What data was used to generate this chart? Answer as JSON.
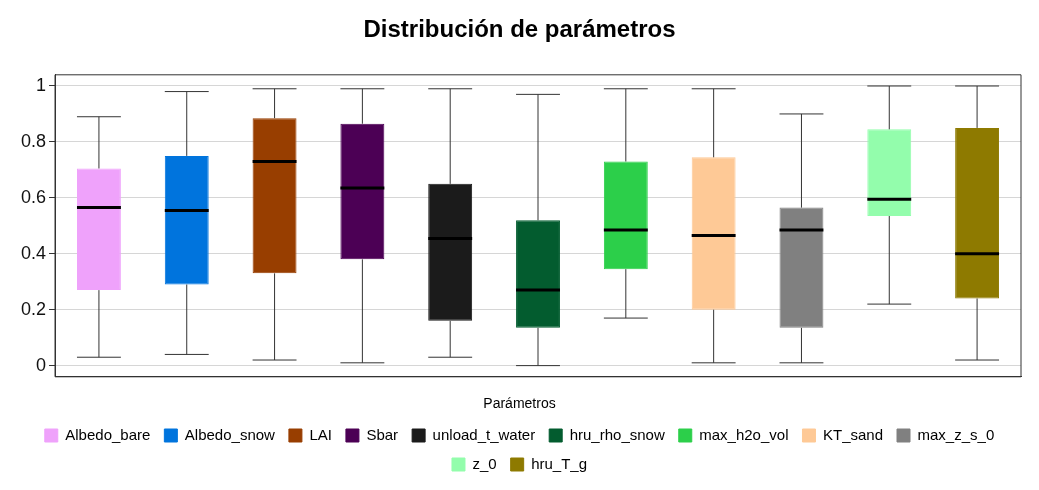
{
  "chart_data": {
    "type": "box",
    "title": "Distribución de parámetros",
    "legend_title": "Parámetros",
    "categories": [
      null,
      null,
      null,
      null,
      null,
      null,
      null,
      null,
      null,
      null,
      null
    ],
    "ylim": [
      -0.04,
      1.04
    ],
    "yticks": [
      0,
      0.2,
      0.4,
      0.6,
      0.8,
      1
    ],
    "grid": "y",
    "legend": "bottom",
    "series": [
      {
        "name": "Albedo_bare",
        "color": "#efa2fb",
        "boxes": [
          {
            "low": 0.03,
            "q1": 0.27,
            "median": 0.565,
            "q3": 0.705,
            "high": 0.89
          },
          null,
          null,
          null,
          null,
          null,
          null,
          null,
          null,
          null,
          null
        ]
      },
      {
        "name": "Albedo_snow",
        "color": "#0074dd",
        "boxes": [
          null,
          {
            "low": 0.04,
            "q1": 0.29,
            "median": 0.555,
            "q3": 0.75,
            "high": 0.98
          },
          null,
          null,
          null,
          null,
          null,
          null,
          null,
          null,
          null
        ]
      },
      {
        "name": "LAI",
        "color": "#983e00",
        "boxes": [
          null,
          null,
          {
            "low": 0.02,
            "q1": 0.33,
            "median": 0.73,
            "q3": 0.885,
            "high": 0.99
          },
          null,
          null,
          null,
          null,
          null,
          null,
          null,
          null
        ]
      },
      {
        "name": "Sbar",
        "color": "#4c0055",
        "boxes": [
          null,
          null,
          null,
          {
            "low": 0.01,
            "q1": 0.38,
            "median": 0.635,
            "q3": 0.865,
            "high": 0.99
          },
          null,
          null,
          null,
          null,
          null,
          null,
          null
        ]
      },
      {
        "name": "unload_t_water",
        "color": "#1b1b1b",
        "boxes": [
          null,
          null,
          null,
          null,
          {
            "low": 0.03,
            "q1": 0.16,
            "median": 0.455,
            "q3": 0.65,
            "high": 0.99
          },
          null,
          null,
          null,
          null,
          null,
          null
        ]
      },
      {
        "name": "hru_rho_snow",
        "color": "#035c2f",
        "boxes": [
          null,
          null,
          null,
          null,
          null,
          {
            "low": 0,
            "q1": 0.135,
            "median": 0.27,
            "q3": 0.52,
            "high": 0.97
          },
          null,
          null,
          null,
          null,
          null
        ]
      },
      {
        "name": "max_h2o_vol",
        "color": "#2ccf4a",
        "boxes": [
          null,
          null,
          null,
          null,
          null,
          null,
          {
            "low": 0.17,
            "q1": 0.345,
            "median": 0.485,
            "q3": 0.73,
            "high": 0.99
          },
          null,
          null,
          null,
          null
        ]
      },
      {
        "name": "KT_sand",
        "color": "#fec996",
        "boxes": [
          null,
          null,
          null,
          null,
          null,
          null,
          null,
          {
            "low": 0.01,
            "q1": 0.2,
            "median": 0.465,
            "q3": 0.745,
            "high": 0.99
          },
          null,
          null,
          null
        ]
      },
      {
        "name": "max_z_s_0",
        "color": "#808080",
        "boxes": [
          null,
          null,
          null,
          null,
          null,
          null,
          null,
          null,
          {
            "low": 0.01,
            "q1": 0.135,
            "median": 0.485,
            "q3": 0.565,
            "high": 0.9
          },
          null,
          null
        ]
      },
      {
        "name": "z_0",
        "color": "#93fdac",
        "boxes": [
          null,
          null,
          null,
          null,
          null,
          null,
          null,
          null,
          null,
          {
            "low": 0.22,
            "q1": 0.535,
            "median": 0.595,
            "q3": 0.845,
            "high": 1
          },
          null
        ]
      },
      {
        "name": "hru_T_g",
        "color": "#8e7a00",
        "boxes": [
          null,
          null,
          null,
          null,
          null,
          null,
          null,
          null,
          null,
          null,
          {
            "low": 0.02,
            "q1": 0.24,
            "median": 0.4,
            "q3": 0.85,
            "high": 1
          }
        ]
      }
    ]
  }
}
